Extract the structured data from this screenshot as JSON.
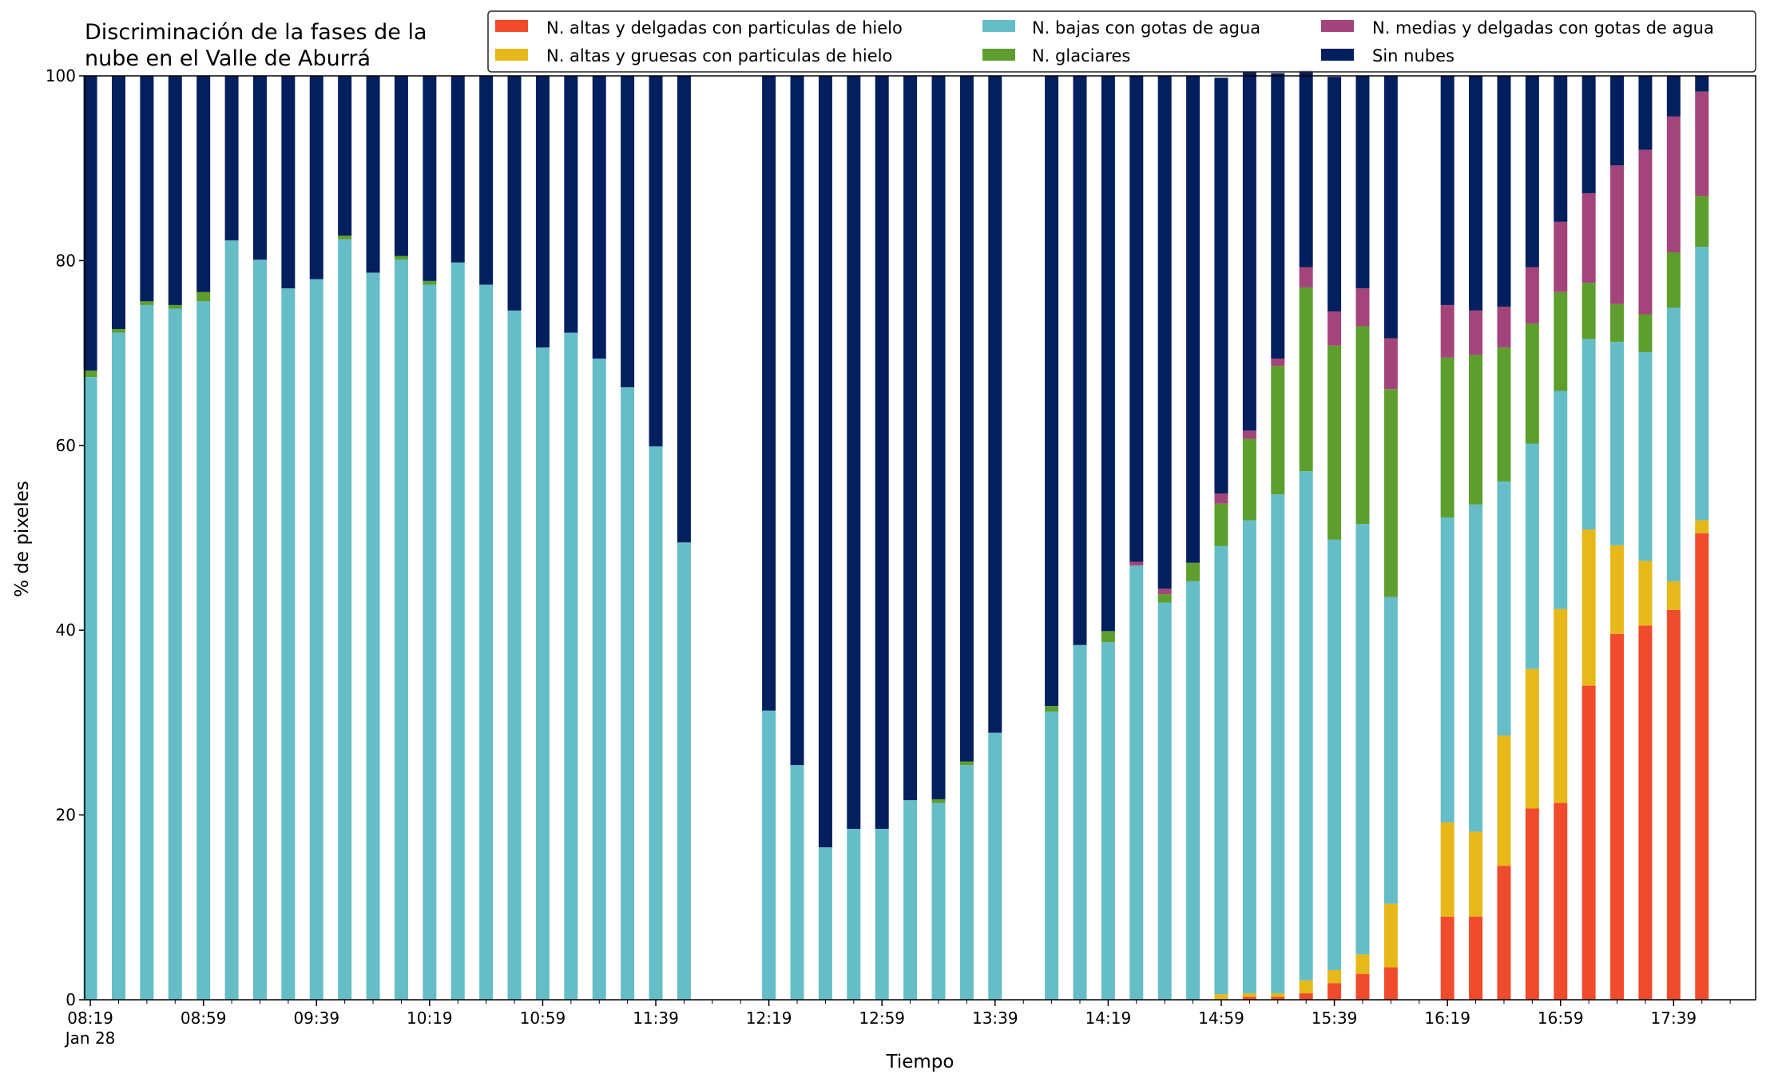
{
  "chart_data": {
    "type": "bar",
    "stacked": true,
    "title": [
      "Discriminación de la fases de la",
      "nube en el Valle de Aburrá"
    ],
    "xlabel": "Tiempo",
    "ylabel": "% de pixeles",
    "ylim": [
      0,
      100
    ],
    "yticks": [
      0,
      20,
      40,
      60,
      80,
      100
    ],
    "x_start_minutes": 499,
    "x_step_minutes": 10,
    "xlim_minutes": [
      497,
      1088
    ],
    "major_tick_labels": [
      "08:19",
      "08:59",
      "09:39",
      "10:19",
      "10:59",
      "11:39",
      "12:19",
      "12:59",
      "13:39",
      "14:19",
      "14:59",
      "15:39",
      "16:19",
      "16:59",
      "17:39"
    ],
    "major_tick_sublabel": "Jan 28",
    "grid": false,
    "legend_position": "top-right",
    "legend_columns": 3,
    "legend": [
      {
        "label": "N. altas y delgadas con particulas de hielo",
        "color": "#F04B2C"
      },
      {
        "label": "N. altas y gruesas con particulas de hielo",
        "color": "#E6B81A"
      },
      {
        "label": "N. bajas con gotas de agua",
        "color": "#65BDC8"
      },
      {
        "label": "N. glaciares",
        "color": "#5E9E2E"
      },
      {
        "label": "N. medias y delgadas con gotas de agua",
        "color": "#A3457A"
      },
      {
        "label": "Sin nubes",
        "color": "#041F5E"
      }
    ],
    "x": [
      "08:19",
      "08:29",
      "08:39",
      "08:49",
      "08:59",
      "09:09",
      "09:19",
      "09:29",
      "09:39",
      "09:49",
      "09:59",
      "10:09",
      "10:19",
      "10:29",
      "10:39",
      "10:49",
      "10:59",
      "11:09",
      "11:19",
      "11:29",
      "11:39",
      "11:49",
      "11:59",
      "12:09",
      "12:19",
      "12:29",
      "12:39",
      "12:49",
      "12:59",
      "13:09",
      "13:19",
      "13:29",
      "13:39",
      "13:49",
      "13:59",
      "14:09",
      "14:19",
      "14:29",
      "14:39",
      "14:49",
      "14:59",
      "15:09",
      "15:19",
      "15:29",
      "15:39",
      "15:49",
      "15:59",
      "16:09",
      "16:19",
      "16:29",
      "16:39",
      "16:49",
      "16:59",
      "17:09",
      "17:19",
      "17:29",
      "17:39",
      "17:49"
    ],
    "series": [
      {
        "name": "N. altas y delgadas con particulas de hielo",
        "color": "#F04B2C",
        "values": [
          0,
          0,
          0,
          0,
          0,
          0,
          0,
          0,
          0,
          0,
          0,
          0,
          0,
          0,
          0,
          0,
          0,
          0,
          0,
          0,
          0,
          0,
          null,
          null,
          0,
          0,
          0,
          0,
          0,
          0,
          0,
          0,
          0,
          null,
          0,
          0,
          0,
          0,
          0,
          0,
          0,
          0.3,
          0.3,
          0.7,
          1.8,
          2.8,
          3.5,
          null,
          9.0,
          9.0,
          14.5,
          20.7,
          21.3,
          34.0,
          39.6,
          40.5,
          42.2,
          50.5
        ]
      },
      {
        "name": "N. altas y gruesas con particulas de hielo",
        "color": "#E6B81A",
        "values": [
          0,
          0,
          0,
          0,
          0,
          0,
          0,
          0,
          0,
          0,
          0,
          0,
          0,
          0,
          0,
          0,
          0,
          0,
          0,
          0,
          0,
          0,
          null,
          null,
          0,
          0,
          0,
          0,
          0,
          0,
          0,
          0,
          0,
          null,
          0,
          0,
          0,
          0,
          0,
          0,
          0.6,
          0.4,
          0.4,
          1.4,
          1.4,
          2.1,
          6.9,
          null,
          10.2,
          9.2,
          14.1,
          15.1,
          21.0,
          16.9,
          9.6,
          7.0,
          3.1,
          1.4
        ]
      },
      {
        "name": "N. bajas con gotas de agua",
        "color": "#65BDC8",
        "values": [
          67.4,
          72.2,
          75.2,
          74.8,
          75.6,
          82.2,
          80.1,
          77.0,
          78.0,
          82.3,
          78.7,
          80.1,
          77.4,
          79.8,
          77.4,
          74.6,
          70.6,
          72.2,
          69.4,
          66.3,
          59.9,
          49.5,
          null,
          null,
          31.3,
          25.4,
          16.5,
          18.5,
          18.5,
          21.6,
          21.3,
          25.4,
          28.9,
          null,
          31.2,
          38.4,
          38.7,
          47.0,
          43.0,
          45.3,
          48.5,
          51.2,
          54.0,
          55.1,
          46.6,
          46.6,
          33.2,
          null,
          33.0,
          35.4,
          27.5,
          24.4,
          23.6,
          20.6,
          22.0,
          22.6,
          29.6,
          29.6
        ]
      },
      {
        "name": "N. glaciares",
        "color": "#5E9E2E",
        "values": [
          0.7,
          0.4,
          0.4,
          0.4,
          1.0,
          0,
          0,
          0,
          0,
          0.4,
          0,
          0.4,
          0.4,
          0,
          0,
          0,
          0,
          0,
          0,
          0,
          0,
          0,
          null,
          null,
          0,
          0,
          0,
          0,
          0,
          0,
          0.4,
          0.4,
          0,
          null,
          0.6,
          0,
          1.2,
          0,
          0.9,
          2.0,
          4.6,
          8.8,
          13.9,
          19.9,
          21.0,
          21.4,
          22.5,
          null,
          17.3,
          16.2,
          14.5,
          13.0,
          10.7,
          6.1,
          4.1,
          4.1,
          6.0,
          5.5
        ]
      },
      {
        "name": "N. medias y delgadas con gotas de agua",
        "color": "#A3457A",
        "values": [
          0,
          0,
          0,
          0,
          0,
          0,
          0,
          0,
          0,
          0,
          0,
          0,
          0,
          0,
          0,
          0,
          0,
          0,
          0,
          0,
          0,
          0,
          null,
          null,
          0,
          0,
          0,
          0,
          0,
          0,
          0,
          0,
          0,
          null,
          0,
          0,
          0,
          0.4,
          0.6,
          0,
          1.1,
          0.9,
          0.8,
          2.2,
          3.7,
          4.1,
          5.5,
          null,
          5.7,
          4.8,
          4.4,
          6.1,
          7.6,
          9.7,
          15.0,
          17.8,
          14.7,
          11.3
        ]
      },
      {
        "name": "Sin nubes",
        "color": "#041F5E",
        "values": [
          31.9,
          27.4,
          24.4,
          24.8,
          23.4,
          17.8,
          19.9,
          23.0,
          22.0,
          17.3,
          21.3,
          19.5,
          22.2,
          20.2,
          22.6,
          25.4,
          29.4,
          27.8,
          30.6,
          33.7,
          40.1,
          50.5,
          null,
          null,
          68.7,
          74.6,
          83.5,
          81.5,
          81.5,
          78.4,
          78.3,
          74.2,
          71.1,
          null,
          68.2,
          61.6,
          60.1,
          52.6,
          55.5,
          52.7,
          45.0,
          38.8,
          30.9,
          21.3,
          25.4,
          23.0,
          28.4,
          null,
          24.8,
          25.4,
          25.0,
          20.7,
          15.8,
          12.7,
          9.7,
          8.0,
          4.4,
          1.7
        ]
      }
    ]
  }
}
